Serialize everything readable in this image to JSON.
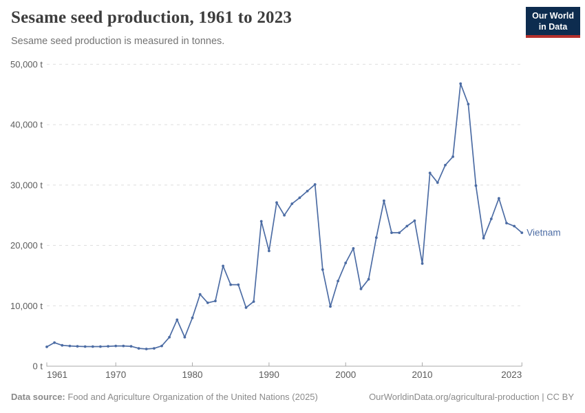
{
  "header": {
    "title": "Sesame seed production, 1961 to 2023",
    "subtitle": "Sesame seed production is measured in tonnes.",
    "logo": {
      "line1": "Our World",
      "line2": "in Data",
      "bg_color": "#0d2c4f",
      "accent_color": "#b5302c"
    }
  },
  "chart_data": {
    "type": "line",
    "title": "Sesame seed production, 1961 to 2023",
    "subtitle": "Sesame seed production is measured in tonnes.",
    "unit": "tonnes",
    "xlim": [
      1961,
      2023
    ],
    "ylim": [
      0,
      50000
    ],
    "grid": "horizontal-dashed",
    "legend_position": "end-of-line-label",
    "x_ticks": [
      1961,
      1970,
      1980,
      1990,
      2000,
      2010,
      2023
    ],
    "x_tick_labels": [
      "1961",
      "1970",
      "1980",
      "1990",
      "2000",
      "2010",
      "2023"
    ],
    "y_ticks": [
      0,
      10000,
      20000,
      30000,
      40000,
      50000
    ],
    "y_tick_labels": [
      "0 t",
      "10,000 t",
      "20,000 t",
      "30,000 t",
      "40,000 t",
      "50,000 t"
    ],
    "colors": {
      "grid": "#dedede",
      "axis": "#a8a8a8",
      "tick_label": "#5b5b5b"
    },
    "series": [
      {
        "name": "Vietnam",
        "color": "#4C6CA4",
        "x": [
          1961,
          1962,
          1963,
          1964,
          1965,
          1966,
          1967,
          1968,
          1969,
          1970,
          1971,
          1972,
          1973,
          1974,
          1975,
          1976,
          1977,
          1978,
          1979,
          1980,
          1981,
          1982,
          1983,
          1984,
          1985,
          1986,
          1987,
          1988,
          1989,
          1990,
          1991,
          1992,
          1993,
          1994,
          1995,
          1996,
          1997,
          1998,
          1999,
          2000,
          2001,
          2002,
          2003,
          2004,
          2005,
          2006,
          2007,
          2008,
          2009,
          2010,
          2011,
          2012,
          2013,
          2014,
          2015,
          2016,
          2017,
          2018,
          2019,
          2020,
          2021,
          2022,
          2023
        ],
        "values": [
          3200,
          3900,
          3450,
          3350,
          3300,
          3250,
          3250,
          3250,
          3300,
          3350,
          3350,
          3300,
          2950,
          2850,
          2950,
          3350,
          4800,
          7700,
          4800,
          8000,
          11900,
          10500,
          10800,
          16600,
          13500,
          13500,
          9700,
          10700,
          24000,
          19100,
          27100,
          25000,
          26900,
          27900,
          29000,
          30100,
          16000,
          9900,
          14100,
          17100,
          19500,
          12800,
          14400,
          21300,
          27400,
          22100,
          22100,
          23200,
          24100,
          17000,
          32000,
          30400,
          33300,
          34700,
          46800,
          43400,
          29900,
          21200,
          24400,
          27800,
          23700,
          23200,
          22100
        ]
      }
    ]
  },
  "footer": {
    "source_label": "Data source:",
    "source": "Food and Agriculture Organization of the United Nations (2025)",
    "credit": "OurWorldinData.org/agricultural-production | CC BY"
  }
}
